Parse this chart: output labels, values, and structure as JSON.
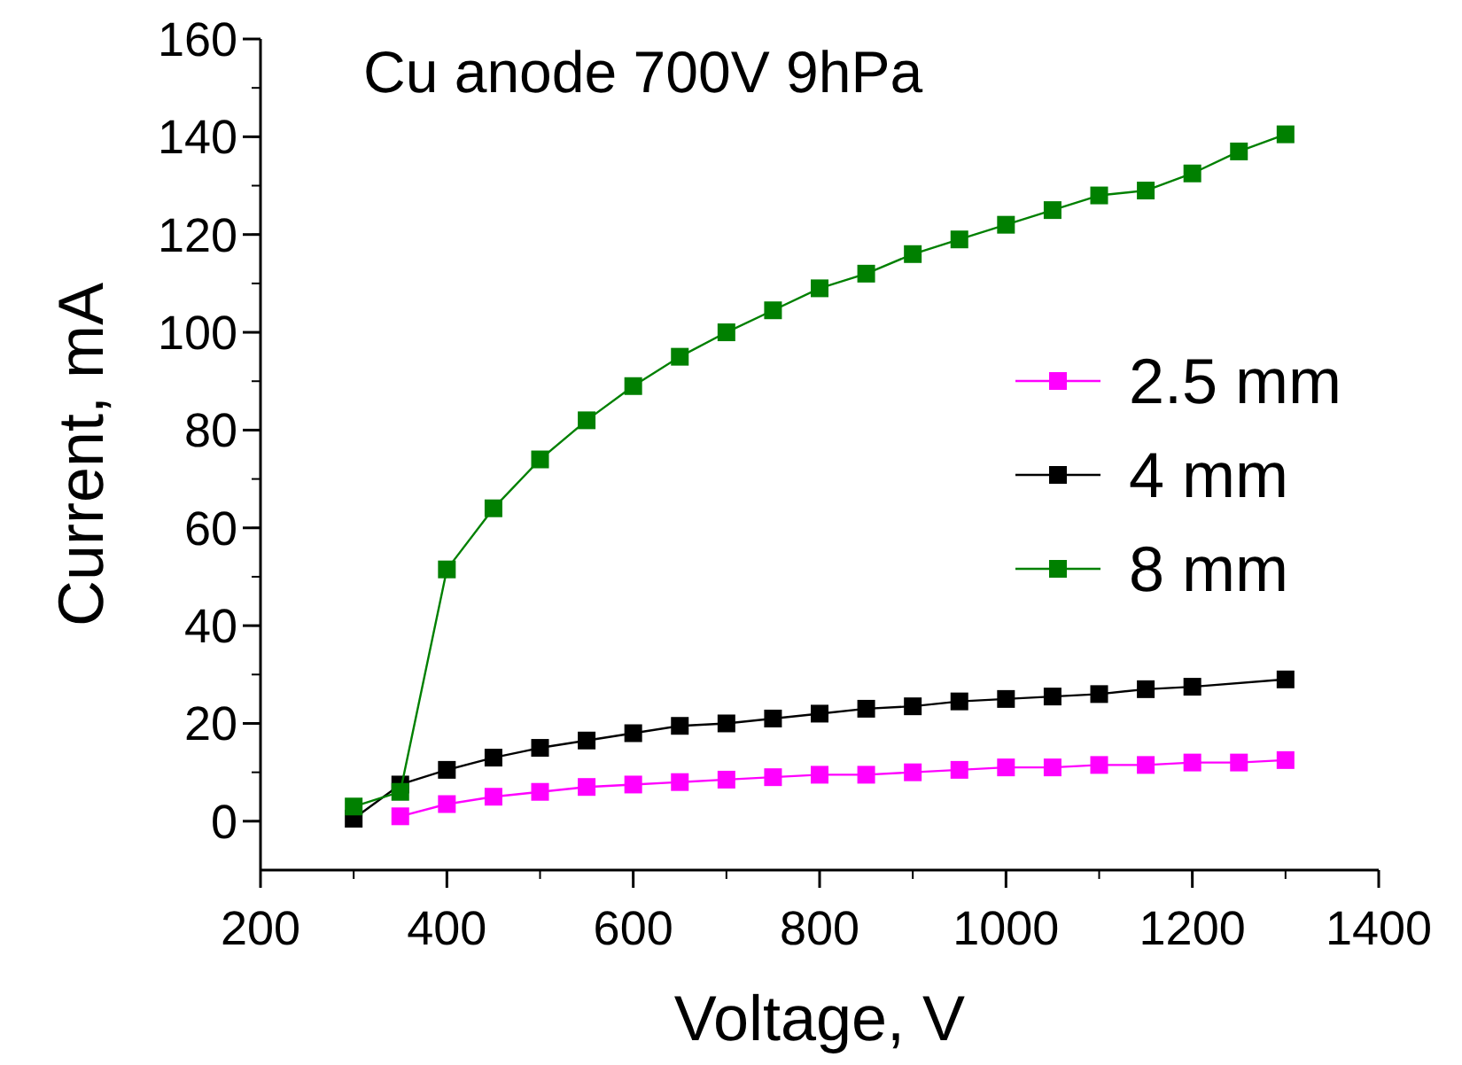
{
  "chart_data": {
    "type": "line",
    "title": "Cu anode 700V 9hPa",
    "xlabel": "Voltage, V",
    "ylabel": "Current, mA",
    "xlim": [
      200,
      1400
    ],
    "xticks": [
      200,
      400,
      600,
      800,
      1000,
      1200,
      1400
    ],
    "ylim": [
      -10,
      160
    ],
    "yticks": [
      0,
      20,
      40,
      60,
      80,
      100,
      120,
      140,
      160
    ],
    "marker": "square",
    "line_style": "solid",
    "legend": "right",
    "grid": false,
    "series": [
      {
        "name": "2.5 mm",
        "color": "#ff00ff",
        "x": [
          350,
          400,
          450,
          500,
          550,
          600,
          650,
          700,
          750,
          800,
          850,
          900,
          950,
          1000,
          1050,
          1100,
          1150,
          1200,
          1250,
          1300
        ],
        "values": [
          1,
          3.5,
          5,
          6,
          7,
          7.5,
          8,
          8.5,
          9,
          9.5,
          9.5,
          10,
          10.5,
          11,
          11,
          11.5,
          11.5,
          12,
          12,
          12.5
        ]
      },
      {
        "name": "4 mm",
        "color": "#000000",
        "x": [
          300,
          350,
          400,
          450,
          500,
          550,
          600,
          650,
          700,
          750,
          800,
          850,
          900,
          950,
          1000,
          1050,
          1100,
          1150,
          1200,
          1300
        ],
        "values": [
          0.5,
          7.5,
          10.5,
          13,
          15,
          16.5,
          18,
          19.5,
          20,
          21,
          22,
          23,
          23.5,
          24.5,
          25,
          25.5,
          26,
          27,
          27.5,
          29
        ]
      },
      {
        "name": "8 mm",
        "color": "#008000",
        "x": [
          300,
          350,
          400,
          450,
          500,
          550,
          600,
          650,
          700,
          750,
          800,
          850,
          900,
          950,
          1000,
          1050,
          1100,
          1150,
          1200,
          1250,
          1300
        ],
        "values": [
          3,
          6,
          51.5,
          64,
          74,
          82,
          89,
          95,
          100,
          104.5,
          109,
          112,
          116,
          119,
          122,
          125,
          128,
          129,
          132.5,
          137,
          140.5
        ]
      }
    ]
  }
}
